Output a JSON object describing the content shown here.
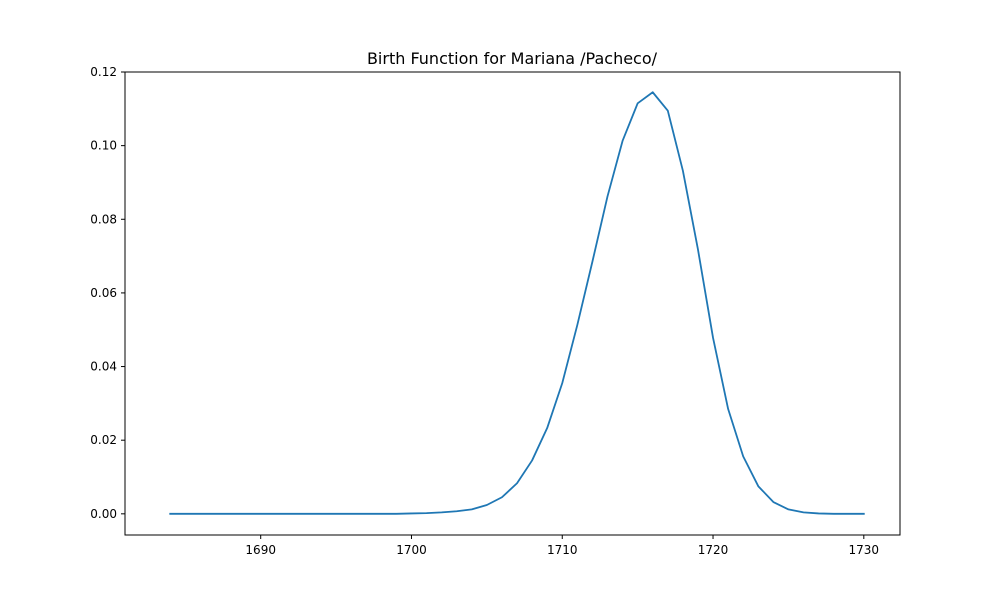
{
  "chart_data": {
    "type": "line",
    "title": "Birth Function for Mariana /Pacheco/",
    "xlabel": "",
    "ylabel": "",
    "xlim": [
      1681,
      1732.4
    ],
    "ylim": [
      -0.00575,
      0.12
    ],
    "x_ticks": [
      1690,
      1700,
      1710,
      1720,
      1730
    ],
    "x_tick_labels": [
      "1690",
      "1700",
      "1710",
      "1720",
      "1730"
    ],
    "y_ticks": [
      0.0,
      0.02,
      0.04,
      0.06,
      0.08,
      0.1,
      0.12
    ],
    "y_tick_labels": [
      "0.00",
      "0.02",
      "0.04",
      "0.06",
      "0.08",
      "0.10",
      "0.12"
    ],
    "grid": false,
    "legend": "none",
    "series": [
      {
        "color": "#1f77b4",
        "x": [
          1684,
          1685,
          1686,
          1687,
          1688,
          1689,
          1690,
          1691,
          1692,
          1693,
          1694,
          1695,
          1696,
          1697,
          1698,
          1699,
          1700,
          1701,
          1702,
          1703,
          1704,
          1705,
          1706,
          1707,
          1708,
          1709,
          1710,
          1711,
          1712,
          1713,
          1714,
          1715,
          1716,
          1717,
          1718,
          1719,
          1720,
          1721,
          1722,
          1723,
          1724,
          1725,
          1726,
          1727,
          1728,
          1729,
          1730
        ],
        "y": [
          0,
          0,
          0,
          0,
          0,
          0,
          0,
          0,
          0,
          0,
          0,
          0,
          0,
          0,
          0,
          0,
          0.0001,
          0.0002,
          0.0004,
          0.0007,
          0.0012,
          0.0024,
          0.0045,
          0.0083,
          0.0145,
          0.0233,
          0.0355,
          0.0513,
          0.0685,
          0.0862,
          0.1013,
          0.1115,
          0.1145,
          0.1095,
          0.0932,
          0.0718,
          0.0478,
          0.0285,
          0.0156,
          0.0075,
          0.0032,
          0.0012,
          0.0004,
          0.0001,
          0,
          0,
          0
        ]
      }
    ]
  }
}
